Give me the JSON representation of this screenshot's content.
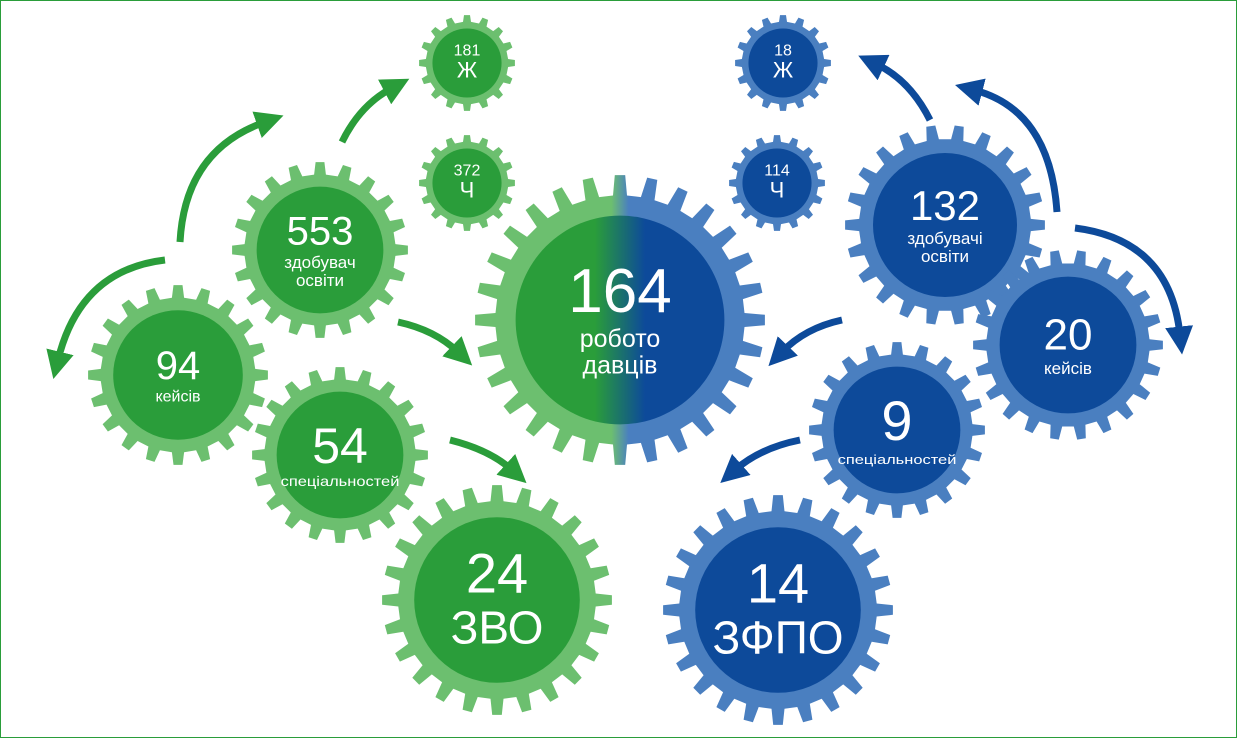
{
  "nodes": [
    {
      "value": 181,
      "label": [
        "Ж"
      ]
    },
    {
      "value": 372,
      "label": [
        "Ч"
      ]
    },
    {
      "value": 553,
      "label": [
        "здобувач",
        "освіти"
      ]
    },
    {
      "value": 94,
      "label": [
        "кейсів"
      ]
    },
    {
      "value": 54,
      "label": [
        "спеціальностей"
      ]
    },
    {
      "value": 24,
      "label": [
        "ЗВО"
      ]
    },
    {
      "value": 164,
      "label": [
        "робото",
        "давців"
      ]
    },
    {
      "value": 18,
      "label": [
        "Ж"
      ]
    },
    {
      "value": 114,
      "label": [
        "Ч"
      ]
    },
    {
      "value": 132,
      "label": [
        "здобувачі",
        "освіти"
      ]
    },
    {
      "value": 20,
      "label": [
        "кейсів"
      ]
    },
    {
      "value": 9,
      "label": [
        "спеціальностей"
      ]
    },
    {
      "value": 14,
      "label": [
        "ЗФПО"
      ]
    }
  ]
}
